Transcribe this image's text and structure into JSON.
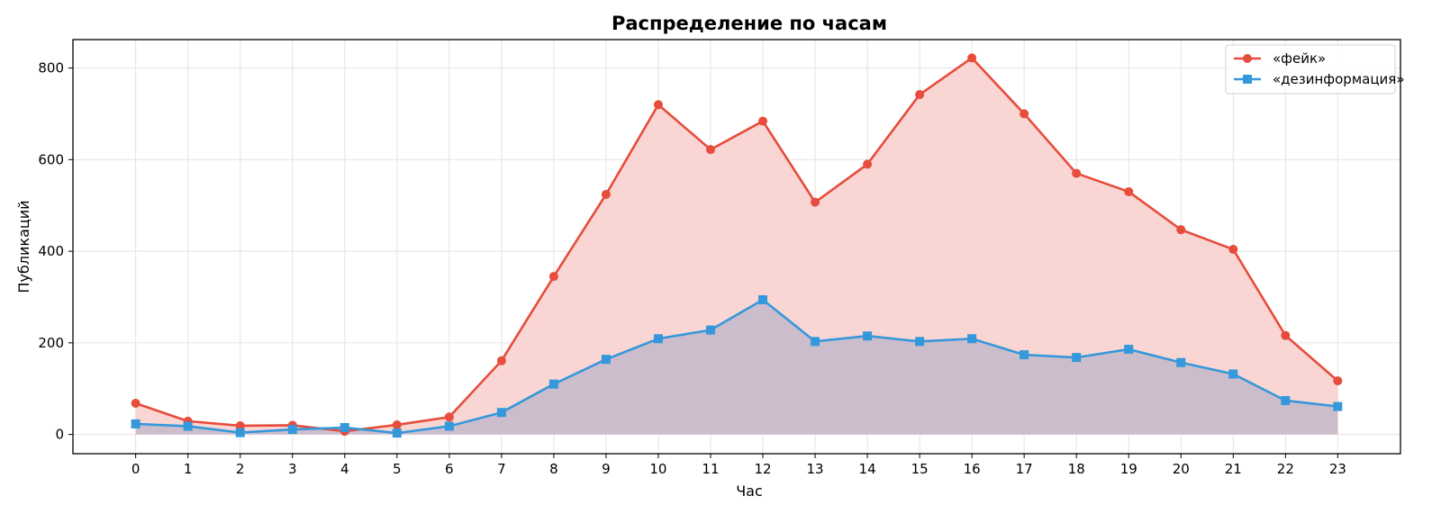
{
  "chart_data": {
    "type": "line",
    "title": "Распределение по часам",
    "xlabel": "Час",
    "ylabel": "Публикаций",
    "x": [
      0,
      1,
      2,
      3,
      4,
      5,
      6,
      7,
      8,
      9,
      10,
      11,
      12,
      13,
      14,
      15,
      16,
      17,
      18,
      19,
      20,
      21,
      22,
      23
    ],
    "x_ticks": [
      "0",
      "1",
      "2",
      "3",
      "4",
      "5",
      "6",
      "7",
      "8",
      "9",
      "10",
      "11",
      "12",
      "13",
      "14",
      "15",
      "16",
      "17",
      "18",
      "19",
      "20",
      "21",
      "22",
      "23"
    ],
    "y_ticks": [
      "0",
      "200",
      "400",
      "600",
      "800"
    ],
    "xlim": [
      -1.2,
      24.2
    ],
    "ylim": [
      -42,
      862
    ],
    "grid": true,
    "legend_position": "top-right",
    "series": [
      {
        "name": "«фейк»",
        "color": "#e74c3c",
        "fill": "#f9d6d3",
        "marker": "circle",
        "values": [
          68,
          29,
          19,
          20,
          7,
          21,
          38,
          161,
          345,
          524,
          720,
          622,
          684,
          507,
          590,
          742,
          822,
          700,
          570,
          530,
          447,
          404,
          216,
          117
        ]
      },
      {
        "name": "«дезинформация»",
        "color": "#3498db",
        "fill": "#a7a9c8",
        "marker": "square",
        "values": [
          23,
          18,
          4,
          11,
          15,
          3,
          18,
          48,
          110,
          164,
          209,
          228,
          294,
          203,
          215,
          203,
          209,
          174,
          168,
          186,
          157,
          132,
          74,
          61
        ]
      }
    ]
  }
}
